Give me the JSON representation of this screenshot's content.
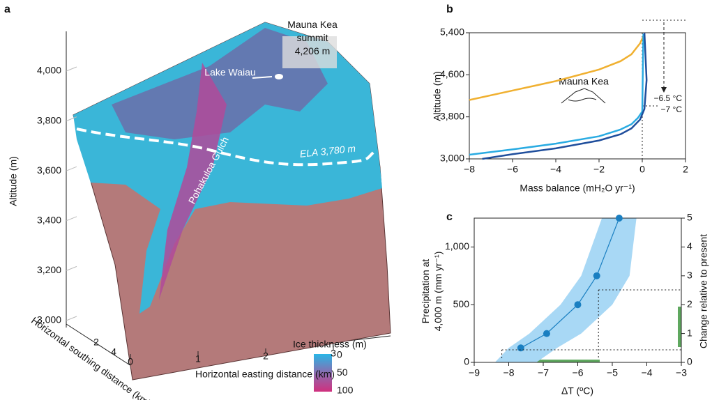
{
  "chart_data": [
    {
      "type": "surface",
      "panel": "a",
      "ylabel": "Altitude (m)",
      "yticks": [
        {
          "value": 3000,
          "label": "3,000"
        },
        {
          "value": 3200,
          "label": "3,200"
        },
        {
          "value": 3400,
          "label": "3,400"
        },
        {
          "value": 3600,
          "label": "3,600"
        },
        {
          "value": 3800,
          "label": "3,800"
        },
        {
          "value": 4000,
          "label": "4,000"
        }
      ],
      "xlabel": "Horizontal easting distance (km)",
      "xticks": [
        0,
        1,
        2,
        3
      ],
      "zlabel": "Horizontal southing distance (km)",
      "zticks": [
        2,
        4
      ],
      "colorbar_title": "Ice thickness (m)",
      "colorbar_ticks": [
        0,
        50,
        100
      ],
      "annotations": [
        "Mauna Kea summit 4,206 m",
        "Lake Waiau",
        "Pohakuloa Gulch",
        "ELA 3,780 m"
      ]
    },
    {
      "type": "line",
      "panel": "b",
      "xlabel": "Mass balance (mH₂O yr⁻¹)",
      "ylabel": "Altitude (m)",
      "xlim": [
        -8,
        2
      ],
      "xticks": [
        {
          "value": -8,
          "label": "−8"
        },
        {
          "value": -6,
          "label": "−6"
        },
        {
          "value": -4,
          "label": "−4"
        },
        {
          "value": -2,
          "label": "−2"
        },
        0,
        2
      ],
      "ylim": [
        3000,
        5400
      ],
      "yticks": [
        {
          "value": 3000,
          "label": "3,000"
        },
        {
          "value": 3800,
          "label": "3,800"
        },
        {
          "value": 4600,
          "label": "4,600"
        },
        {
          "value": 5400,
          "label": "5,400"
        }
      ],
      "series": [
        {
          "color": "#f0b030",
          "x": [
            -8,
            -6,
            -4,
            -2,
            -1,
            -0.5,
            -0.1,
            0.05
          ],
          "values": [
            4120,
            4300,
            4480,
            4700,
            4860,
            4990,
            5200,
            5330
          ]
        },
        {
          "color": "#29abe2",
          "x": [
            -8,
            -6,
            -4,
            -2,
            -1,
            -0.5,
            -0.2,
            0,
            0.05
          ],
          "values": [
            3080,
            3180,
            3290,
            3430,
            3560,
            3660,
            3780,
            3900,
            5380
          ]
        },
        {
          "color": "#1f4e9c",
          "x": [
            -7.4,
            -6,
            -4,
            -2,
            -1,
            -0.5,
            -0.1,
            0.1,
            0.2,
            0.1
          ],
          "values": [
            3000,
            3090,
            3200,
            3350,
            3470,
            3580,
            3750,
            3950,
            4500,
            5400
          ]
        }
      ],
      "annotations": [
        "Mauna Kea",
        "−6.5 °C",
        "−7 °C"
      ]
    },
    {
      "type": "line",
      "panel": "c",
      "xlabel": "ΔT (ºC)",
      "ylabel": "Precipitation at 4,000 m (mm yr⁻¹)",
      "y2label": "Change relative to present",
      "xlim": [
        -9,
        -3
      ],
      "xticks": [
        {
          "value": -9,
          "label": "−9"
        },
        {
          "value": -8,
          "label": "−8"
        },
        {
          "value": -7,
          "label": "−7"
        },
        {
          "value": -6,
          "label": "−6"
        },
        {
          "value": -5,
          "label": "−5"
        },
        {
          "value": -4,
          "label": "−4"
        },
        {
          "value": -3,
          "label": "−3"
        }
      ],
      "ylim": [
        0,
        1250
      ],
      "yticks": [
        0,
        500,
        {
          "value": 1000,
          "label": "1,000"
        }
      ],
      "y2lim": [
        0,
        5
      ],
      "y2ticks": [
        0,
        1,
        2,
        3,
        4,
        5
      ],
      "series": [
        {
          "color": "#1a7fc1",
          "x": [
            -7.65,
            -6.9,
            -6.0,
            -5.45,
            -4.8
          ],
          "values": [
            125,
            250,
            500,
            750,
            1250
          ]
        }
      ],
      "band": {
        "color": "#a8d8f5",
        "values": [
          0,
          125,
          250,
          500,
          750,
          1000,
          1250
        ],
        "x_low": [
          -8.4,
          -8.0,
          -7.4,
          -6.5,
          -5.9,
          -5.6,
          -5.3
        ],
        "x_high": [
          -7.2,
          -6.6,
          -5.9,
          -5.0,
          -4.5,
          -4.4,
          -4.3
        ]
      }
    }
  ]
}
